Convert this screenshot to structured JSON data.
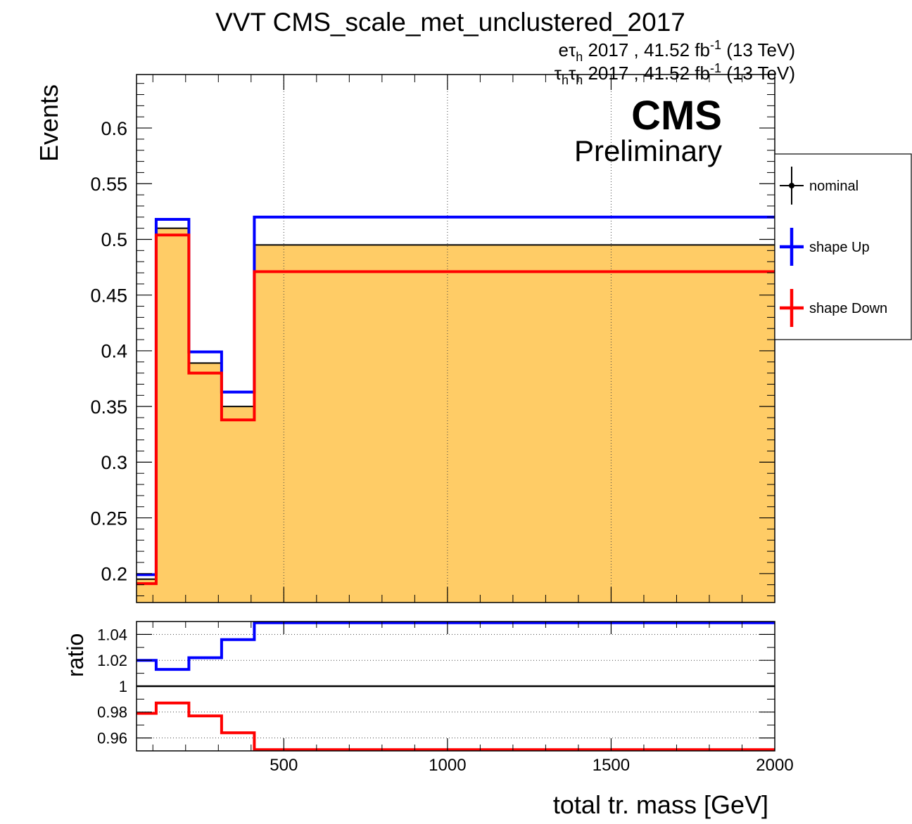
{
  "title": "VVT CMS_scale_met_unclustered_2017",
  "lumi_lines": [
    {
      "channel_base": "eτ",
      "channel_sub": "h",
      "channel_rest": "",
      "channel_rest_sub": "",
      "text": " 2017 , 41.52 fb",
      "sup": "-1",
      "tail": " (13 TeV)"
    },
    {
      "channel_base": "τ",
      "channel_sub": "h",
      "channel_rest": "τ",
      "channel_rest_sub": "h",
      "text": " 2017 , 41.52 fb",
      "sup": "-1",
      "tail": " (13 TeV)"
    }
  ],
  "cms_label": "CMS",
  "cms_sublabel": "Preliminary",
  "legend": [
    {
      "label": "nominal",
      "color": "#000000"
    },
    {
      "label": "shape Up",
      "color": "#0000ff"
    },
    {
      "label": "shape Down",
      "color": "#ff0000"
    }
  ],
  "colors": {
    "fill": "#ffcc66"
  },
  "chart_data": [
    {
      "type": "line",
      "name": "main",
      "ylabel": "Events",
      "xlim": [
        50,
        2000
      ],
      "ylim": [
        0.174,
        0.648
      ],
      "yticks": [
        0.2,
        0.25,
        0.3,
        0.35,
        0.4,
        0.45,
        0.5,
        0.55,
        0.6
      ],
      "ytick_labels": [
        "0.2",
        "0.25",
        "0.3",
        "0.35",
        "0.4",
        "0.45",
        "0.5",
        "0.55",
        "0.6"
      ],
      "xgrid": [
        500,
        1000,
        1500
      ],
      "bin_edges": [
        50,
        110,
        210,
        310,
        410,
        2000
      ],
      "series": [
        {
          "name": "nominal",
          "values": [
            0.195,
            0.51,
            0.389,
            0.35,
            0.495
          ]
        },
        {
          "name": "shape Up",
          "values": [
            0.199,
            0.518,
            0.399,
            0.363,
            0.52
          ]
        },
        {
          "name": "shape Down",
          "values": [
            0.191,
            0.504,
            0.38,
            0.338,
            0.471
          ]
        }
      ]
    },
    {
      "type": "line",
      "name": "ratio",
      "xlabel": "total tr. mass [GeV]",
      "ylabel": "ratio",
      "xlim": [
        50,
        2000
      ],
      "ylim": [
        0.95,
        1.05
      ],
      "yticks": [
        0.96,
        0.98,
        1,
        1.02,
        1.04
      ],
      "ytick_labels": [
        "0.96",
        "0.98",
        "1",
        "1.02",
        "1.04"
      ],
      "xticks": [
        500,
        1000,
        1500,
        2000
      ],
      "xtick_labels": [
        "500",
        "1000",
        "1500",
        "2000"
      ],
      "bin_edges": [
        50,
        110,
        210,
        310,
        410,
        2000
      ],
      "series": [
        {
          "name": "shape Up",
          "values": [
            1.02,
            1.013,
            1.022,
            1.036,
            1.049
          ]
        },
        {
          "name": "shape Down",
          "values": [
            0.979,
            0.987,
            0.977,
            0.964,
            0.951
          ]
        }
      ]
    }
  ]
}
